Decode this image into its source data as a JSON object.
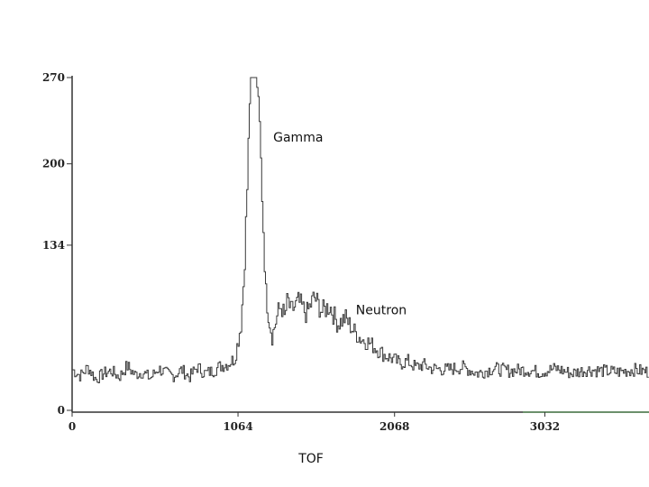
{
  "chart_data": {
    "type": "line",
    "title": "",
    "xlabel": "TOF",
    "ylabel": "",
    "xlim": [
      0,
      3700
    ],
    "ylim": [
      0,
      270
    ],
    "xticks": [
      0,
      1064,
      2068,
      3032
    ],
    "xtick_labels": [
      "0",
      "1064",
      "2068",
      "3032"
    ],
    "yticks": [
      0,
      134,
      200,
      270
    ],
    "ytick_labels": [
      "0",
      "134",
      "200",
      "270"
    ],
    "grid": false,
    "legend": "none",
    "colors": {
      "line": "#3a3a3a",
      "axis": "#333333",
      "baseline_right": "#3b6b3b"
    },
    "annotations": [
      {
        "text": "Gamma",
        "x": 1290,
        "y": 218
      },
      {
        "text": "Neutron",
        "x": 1820,
        "y": 78
      }
    ],
    "series": [
      {
        "x": [
          0,
          50,
          100,
          150,
          200,
          250,
          300,
          350,
          400,
          450,
          500,
          550,
          600,
          650,
          700,
          750,
          800,
          850,
          900,
          950,
          1000,
          1040,
          1060,
          1080,
          1100,
          1120,
          1140,
          1160,
          1180,
          1200,
          1220,
          1240,
          1260,
          1280,
          1300,
          1320,
          1340,
          1360,
          1380,
          1400,
          1450,
          1500,
          1550,
          1600,
          1650,
          1700,
          1750,
          1800,
          1850,
          1900,
          1950,
          2000,
          2050,
          2100,
          2150,
          2200,
          2250,
          2300,
          2400,
          2500,
          2600,
          2700,
          2800,
          2900,
          3000,
          3100,
          3200,
          3300,
          3400,
          3500,
          3600,
          3700
        ],
        "y": [
          33,
          28,
          35,
          25,
          30,
          32,
          27,
          36,
          29,
          31,
          26,
          34,
          30,
          28,
          33,
          27,
          35,
          30,
          32,
          36,
          38,
          42,
          55,
          70,
          110,
          180,
          270,
          270,
          270,
          230,
          160,
          95,
          75,
          60,
          70,
          80,
          85,
          75,
          90,
          80,
          88,
          78,
          92,
          80,
          85,
          70,
          75,
          65,
          58,
          55,
          50,
          45,
          42,
          38,
          40,
          35,
          37,
          34,
          33,
          35,
          30,
          34,
          32,
          33,
          31,
          34,
          30,
          33,
          32,
          31,
          33,
          31
        ]
      }
    ]
  }
}
